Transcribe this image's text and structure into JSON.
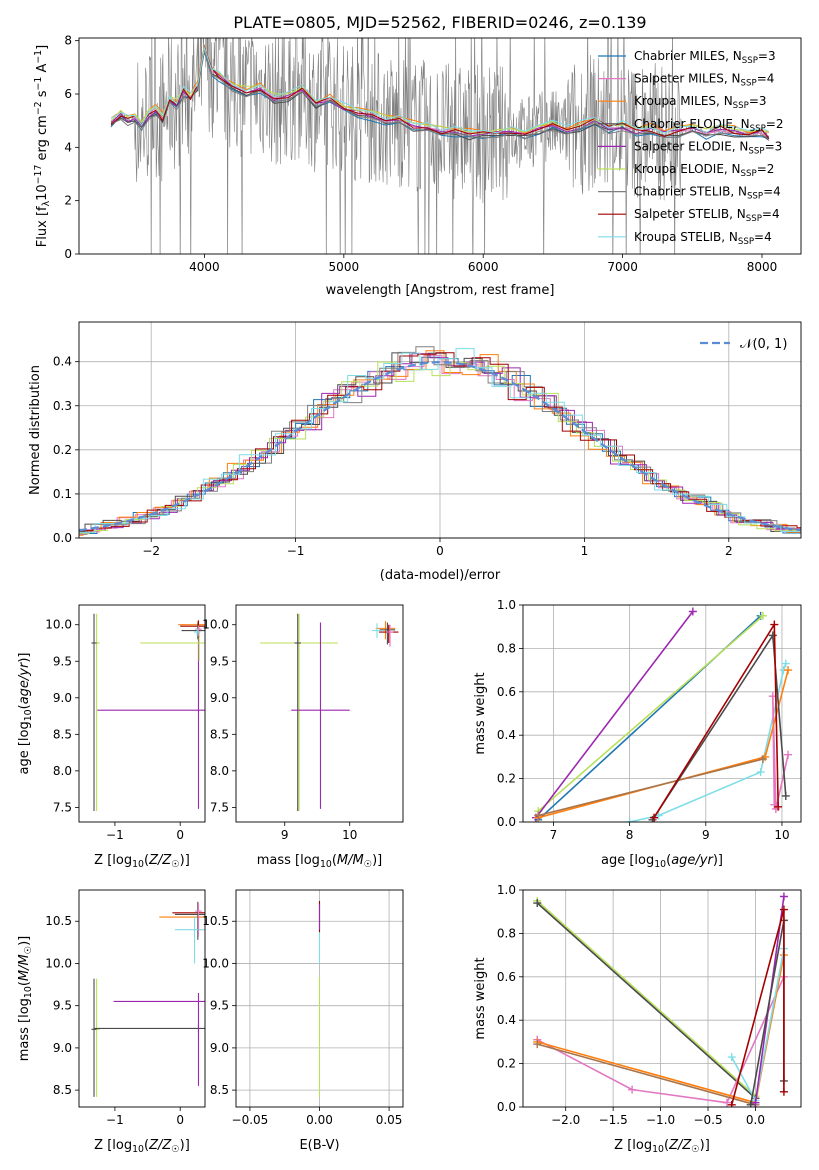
{
  "figure_title": "PLATE=0805, MJD=52562, FIBERID=0246, z=0.139",
  "series_colors": [
    "#1f77b4",
    "#e377c2",
    "#ff7f0e",
    "#4b4b4b",
    "#9c27b0",
    "#b8e05a",
    "#7f7f7f",
    "#a40000",
    "#7fdde8"
  ],
  "chart_data": [
    {
      "panel": "spectrum",
      "type": "line",
      "xlabel": "wavelength [Angstrom, rest frame]",
      "ylabel": "Flux [f_λ10^-17 erg cm^-2 s^-1 A^-1]",
      "xlim": [
        3100,
        8280
      ],
      "ylim": [
        0,
        8.1
      ],
      "xticks": [
        "4000",
        "5000",
        "6000",
        "7000",
        "8000"
      ],
      "yticks": [
        "0",
        "2",
        "4",
        "6",
        "8"
      ],
      "grid": false,
      "legend_position": "top-right",
      "legend": [
        {
          "label": "Chabrier MILES, N_SSP=3",
          "color": "#1f77b4"
        },
        {
          "label": "Salpeter MILES, N_SSP=4",
          "color": "#e377c2"
        },
        {
          "label": "Kroupa MILES, N_SSP=3",
          "color": "#ff7f0e"
        },
        {
          "label": "Chabrier ELODIE, N_SSP=2",
          "color": "#4b4b4b"
        },
        {
          "label": "Salpeter ELODIE, N_SSP=3",
          "color": "#9c27b0"
        },
        {
          "label": "Kroupa ELODIE, N_SSP=2",
          "color": "#b8e05a"
        },
        {
          "label": "Chabrier STELIB, N_SSP=4",
          "color": "#7f7f7f"
        },
        {
          "label": "Salpeter STELIB, N_SSP=4",
          "color": "#a40000"
        },
        {
          "label": "Kroupa STELIB, N_SSP=4",
          "color": "#7fdde8"
        }
      ],
      "observed_noise_range": [
        3500,
        7420
      ],
      "model_curve": {
        "x": [
          3330,
          3400,
          3450,
          3500,
          3550,
          3600,
          3650,
          3700,
          3750,
          3800,
          3850,
          3900,
          3950,
          4000,
          4050,
          4100,
          4200,
          4300,
          4400,
          4500,
          4600,
          4700,
          4800,
          4900,
          5000,
          5100,
          5200,
          5300,
          5400,
          5500,
          5600,
          5700,
          5800,
          5900,
          6000,
          6100,
          6200,
          6300,
          6400,
          6500,
          6600,
          6700,
          6800,
          6900,
          7000,
          7100,
          7200,
          7300,
          7400,
          7500,
          7600,
          7700,
          7800,
          7900,
          8000,
          8050
        ],
        "y": [
          4.9,
          5.2,
          5.0,
          5.1,
          4.8,
          5.2,
          5.4,
          5.1,
          5.8,
          5.6,
          6.1,
          5.9,
          6.3,
          7.7,
          6.9,
          6.7,
          6.3,
          6.1,
          6.2,
          5.8,
          5.9,
          6.2,
          5.6,
          5.8,
          5.5,
          5.3,
          5.2,
          5.0,
          5.0,
          4.8,
          4.7,
          4.6,
          4.6,
          4.5,
          4.5,
          4.5,
          4.6,
          4.5,
          4.7,
          4.8,
          4.6,
          4.8,
          5.0,
          4.7,
          4.8,
          4.6,
          4.7,
          4.5,
          4.6,
          4.7,
          4.5,
          4.7,
          4.6,
          4.5,
          4.6,
          4.4
        ]
      }
    },
    {
      "panel": "residuals",
      "type": "line",
      "xlabel": "(data-model)/error",
      "ylabel": "Normed distribution",
      "xlim": [
        -2.5,
        2.5
      ],
      "ylim": [
        0,
        0.49
      ],
      "xticks": [
        "−2",
        "−1",
        "0",
        "1",
        "2"
      ],
      "yticks": [
        "0.0",
        "0.1",
        "0.2",
        "0.3",
        "0.4"
      ],
      "grid": true,
      "legend_position": "top-right",
      "legend": [
        {
          "label": "𝒩(0, 1)",
          "color": "#5b8dd6"
        }
      ],
      "bins": 40
    },
    {
      "panel": "age-vs-Z",
      "type": "scatter",
      "xlabel": "Z [log10(Z/Z☉)]",
      "ylabel": "age  [log10(age/yr)]",
      "xlim": [
        -1.55,
        0.38
      ],
      "ylim": [
        7.3,
        10.27
      ],
      "xticks": [
        "−1",
        "0"
      ],
      "yticks": [
        "7.5",
        "8.0",
        "8.5",
        "9.0",
        "9.5",
        "10.0"
      ],
      "grid": false,
      "points": [
        {
          "x": -1.28,
          "y": 9.75,
          "xerr": 0.05,
          "yerr_lo": 2.3,
          "yerr_hi": 0.4,
          "color": "#b8e05a"
        },
        {
          "x": -1.32,
          "y": 9.75,
          "xerr": 0.04,
          "yerr_lo": 2.3,
          "yerr_hi": 0.4,
          "color": "#4b4b4b"
        },
        {
          "x": 0.28,
          "y": 8.83,
          "xerr": 1.55,
          "yerr_lo": 1.35,
          "yerr_hi": 1.2,
          "color": "#9c27b0"
        },
        {
          "x": 0.29,
          "y": 9.75,
          "xerr": 0.9,
          "yerr_lo": 0.25,
          "yerr_hi": 0.25,
          "color": "#b8e05a"
        },
        {
          "x": 0.27,
          "y": 10.0,
          "xerr": 0.3,
          "yerr_lo": 0.1,
          "yerr_hi": 0.05,
          "color": "#ff7f0e"
        },
        {
          "x": 0.28,
          "y": 9.98,
          "xerr": 0.28,
          "yerr_lo": 0.15,
          "yerr_hi": 0.08,
          "color": "#a40000"
        },
        {
          "x": 0.27,
          "y": 9.92,
          "xerr": 0.25,
          "yerr_lo": 0.12,
          "yerr_hi": 0.1,
          "color": "#4b4b4b"
        },
        {
          "x": 0.28,
          "y": 9.94,
          "xerr": 0.05,
          "yerr_lo": 0.1,
          "yerr_hi": 0.05,
          "color": "#e377c2"
        },
        {
          "x": 0.26,
          "y": 9.9,
          "xerr": 0.05,
          "yerr_lo": 0.05,
          "yerr_hi": 0.05,
          "color": "#7fdde8"
        }
      ]
    },
    {
      "panel": "age-vs-mass",
      "type": "scatter",
      "xlabel": "mass [log10(M/M☉)]",
      "ylabel": "",
      "xlim": [
        8.25,
        10.82
      ],
      "ylim": [
        7.3,
        10.27
      ],
      "xticks": [
        "9",
        "10"
      ],
      "yticks": [
        "7.5",
        "8.0",
        "8.5",
        "9.0",
        "9.5",
        "10.0"
      ],
      "grid": false,
      "points": [
        {
          "x": 9.22,
          "y": 9.75,
          "xerr": 0.6,
          "yerr_lo": 2.3,
          "yerr_hi": 0.4,
          "color": "#b8e05a"
        },
        {
          "x": 9.2,
          "y": 9.75,
          "xerr": 0.05,
          "yerr_lo": 2.3,
          "yerr_hi": 0.4,
          "color": "#4b4b4b"
        },
        {
          "x": 9.55,
          "y": 8.83,
          "xerr": 0.45,
          "yerr_lo": 1.35,
          "yerr_hi": 1.2,
          "color": "#9c27b0"
        },
        {
          "x": 10.55,
          "y": 9.95,
          "xerr": 0.15,
          "yerr_lo": 0.15,
          "yerr_hi": 0.1,
          "color": "#ff7f0e"
        },
        {
          "x": 10.6,
          "y": 9.9,
          "xerr": 0.15,
          "yerr_lo": 0.15,
          "yerr_hi": 0.1,
          "color": "#a40000"
        },
        {
          "x": 10.58,
          "y": 9.93,
          "xerr": 0.12,
          "yerr_lo": 0.2,
          "yerr_hi": 0.1,
          "color": "#4b4b4b"
        },
        {
          "x": 10.42,
          "y": 9.92,
          "xerr": 0.08,
          "yerr_lo": 0.1,
          "yerr_hi": 0.1,
          "color": "#7fdde8"
        },
        {
          "x": 10.62,
          "y": 9.9,
          "xerr": 0.05,
          "yerr_lo": 0.2,
          "yerr_hi": 0.1,
          "color": "#e377c2"
        }
      ]
    },
    {
      "panel": "mass-weight-vs-age",
      "type": "line",
      "xlabel": "age  [log10(age/yr)]",
      "ylabel": "mass weight",
      "xlim": [
        6.6,
        10.25
      ],
      "ylim": [
        0,
        1.0
      ],
      "xticks": [
        "7",
        "8",
        "9",
        "10"
      ],
      "yticks": [
        "0.0",
        "0.2",
        "0.4",
        "0.6",
        "0.8",
        "1.0"
      ],
      "grid": true,
      "series": [
        {
          "color": "#1f77b4",
          "x": [
            6.8,
            9.72
          ],
          "y": [
            0.01,
            0.95
          ]
        },
        {
          "color": "#b8e05a",
          "x": [
            6.8,
            9.75
          ],
          "y": [
            0.05,
            0.95
          ]
        },
        {
          "color": "#9c27b0",
          "x": [
            6.77,
            8.83
          ],
          "y": [
            0.02,
            0.97
          ]
        },
        {
          "color": "#7fdde8",
          "x": [
            8.0,
            8.38,
            9.72,
            10.02,
            10.05
          ],
          "y": [
            0.0,
            0.03,
            0.23,
            0.7,
            0.73
          ]
        },
        {
          "color": "#e377c2",
          "x": [
            9.9,
            9.88,
            9.92,
            10.08
          ],
          "y": [
            0.08,
            0.58,
            0.06,
            0.31
          ]
        },
        {
          "color": "#ff7f0e",
          "x": [
            6.8,
            9.78,
            10.08
          ],
          "y": [
            0.02,
            0.3,
            0.7
          ]
        },
        {
          "color": "#a8744a",
          "x": [
            6.8,
            9.75
          ],
          "y": [
            0.03,
            0.29
          ]
        },
        {
          "color": "#4b4b4b",
          "x": [
            8.3,
            9.88,
            10.05
          ],
          "y": [
            0.01,
            0.86,
            0.12
          ]
        },
        {
          "color": "#a40000",
          "x": [
            8.32,
            9.9,
            9.95
          ],
          "y": [
            0.02,
            0.91,
            0.07
          ]
        }
      ]
    },
    {
      "panel": "mass-vs-Z",
      "type": "scatter",
      "xlabel": "Z [log10(Z/Z☉)]",
      "ylabel": "mass [log10(M/M☉)]",
      "xlim": [
        -1.55,
        0.38
      ],
      "ylim": [
        8.3,
        10.87
      ],
      "xticks": [
        "−1",
        "0"
      ],
      "yticks": [
        "8.5",
        "9.0",
        "9.5",
        "10.0",
        "10.5"
      ],
      "grid": false,
      "points": [
        {
          "x": -1.28,
          "y": 9.22,
          "xerr": 0.05,
          "yerr_lo": 0.8,
          "yerr_hi": 0.6,
          "color": "#b8e05a"
        },
        {
          "x": -1.32,
          "y": 9.22,
          "xerr": 0.04,
          "yerr_lo": 0.8,
          "yerr_hi": 0.6,
          "color": "#4b4b4b"
        },
        {
          "x": 0.28,
          "y": 9.23,
          "xerr": 1.6,
          "yerr_lo": 0.05,
          "yerr_hi": 0.05,
          "color": "#4b4b4b"
        },
        {
          "x": 0.28,
          "y": 9.55,
          "xerr": 1.3,
          "yerr_lo": 1.0,
          "yerr_hi": 0.1,
          "color": "#9c27b0"
        },
        {
          "x": 0.28,
          "y": 10.55,
          "xerr": 0.6,
          "yerr_lo": 0.15,
          "yerr_hi": 0.1,
          "color": "#ff7f0e"
        },
        {
          "x": 0.28,
          "y": 10.6,
          "xerr": 0.4,
          "yerr_lo": 0.2,
          "yerr_hi": 0.1,
          "color": "#a40000"
        },
        {
          "x": 0.27,
          "y": 10.58,
          "xerr": 0.35,
          "yerr_lo": 0.3,
          "yerr_hi": 0.15,
          "color": "#4b4b4b"
        },
        {
          "x": 0.22,
          "y": 10.4,
          "xerr": 0.3,
          "yerr_lo": 0.4,
          "yerr_hi": 0.15,
          "color": "#7fdde8"
        },
        {
          "x": 0.28,
          "y": 10.62,
          "xerr": 0.05,
          "yerr_lo": 0.3,
          "yerr_hi": 0.1,
          "color": "#e377c2"
        }
      ]
    },
    {
      "panel": "mass-vs-EBV",
      "type": "scatter",
      "xlabel": "E(B-V)",
      "ylabel": "",
      "xlim": [
        -0.06,
        0.06
      ],
      "ylim": [
        8.3,
        10.87
      ],
      "xticks": [
        "−0.05",
        "0.00",
        "0.05"
      ],
      "yticks": [
        "8.5",
        "9.0",
        "9.5",
        "10.0",
        "10.5"
      ],
      "grid": true,
      "points": [
        {
          "x": 0.0,
          "y": 9.22,
          "xerr": 0.0,
          "yerr_lo": 0.8,
          "yerr_hi": 0.62,
          "color": "#b8e05a"
        },
        {
          "x": 0.0,
          "y": 10.55,
          "xerr": 0.0,
          "yerr_lo": 0.55,
          "yerr_hi": 0.2,
          "color": "#7fdde8"
        },
        {
          "x": 0.0,
          "y": 10.62,
          "xerr": 0.0,
          "yerr_lo": 0.25,
          "yerr_hi": 0.12,
          "color": "#a40000"
        },
        {
          "x": 0.0,
          "y": 10.6,
          "xerr": 0.0,
          "yerr_lo": 0.2,
          "yerr_hi": 0.1,
          "color": "#9c27b0"
        }
      ]
    },
    {
      "panel": "mass-weight-vs-Z",
      "type": "line",
      "xlabel": "Z [log10(Z/Z☉)]",
      "ylabel": "mass weight",
      "xlim": [
        -2.45,
        0.48
      ],
      "ylim": [
        0,
        1.0
      ],
      "xticks": [
        "−2.0",
        "−1.5",
        "−1.0",
        "−0.5",
        "0.0"
      ],
      "yticks": [
        "0.0",
        "0.2",
        "0.4",
        "0.6",
        "0.8",
        "1.0"
      ],
      "grid": true,
      "series": [
        {
          "color": "#b8e05a",
          "x": [
            -2.3,
            0.0
          ],
          "y": [
            0.95,
            0.05
          ]
        },
        {
          "color": "#4b4b4b",
          "x": [
            -2.3,
            0.0
          ],
          "y": [
            0.94,
            0.04
          ]
        },
        {
          "color": "#e377c2",
          "x": [
            -2.3,
            -1.3,
            -0.3,
            0.3
          ],
          "y": [
            0.31,
            0.08,
            0.02,
            0.6
          ]
        },
        {
          "color": "#ff7f0e",
          "x": [
            -2.3,
            0.0,
            0.3
          ],
          "y": [
            0.3,
            0.02,
            0.7
          ]
        },
        {
          "color": "#a8744a",
          "x": [
            -2.3,
            0.0
          ],
          "y": [
            0.29,
            0.01
          ]
        },
        {
          "color": "#7fdde8",
          "x": [
            -0.25,
            0.0,
            0.3
          ],
          "y": [
            0.23,
            0.03,
            0.73
          ]
        },
        {
          "color": "#9c27b0",
          "x": [
            0.0,
            0.3
          ],
          "y": [
            0.02,
            0.97
          ]
        },
        {
          "color": "#4b4b4b",
          "x": [
            -0.05,
            0.3,
            0.3
          ],
          "y": [
            0.01,
            0.86,
            0.12
          ]
        },
        {
          "color": "#a40000",
          "x": [
            -0.25,
            0.3,
            0.3
          ],
          "y": [
            0.01,
            0.91,
            0.07
          ]
        }
      ]
    }
  ]
}
